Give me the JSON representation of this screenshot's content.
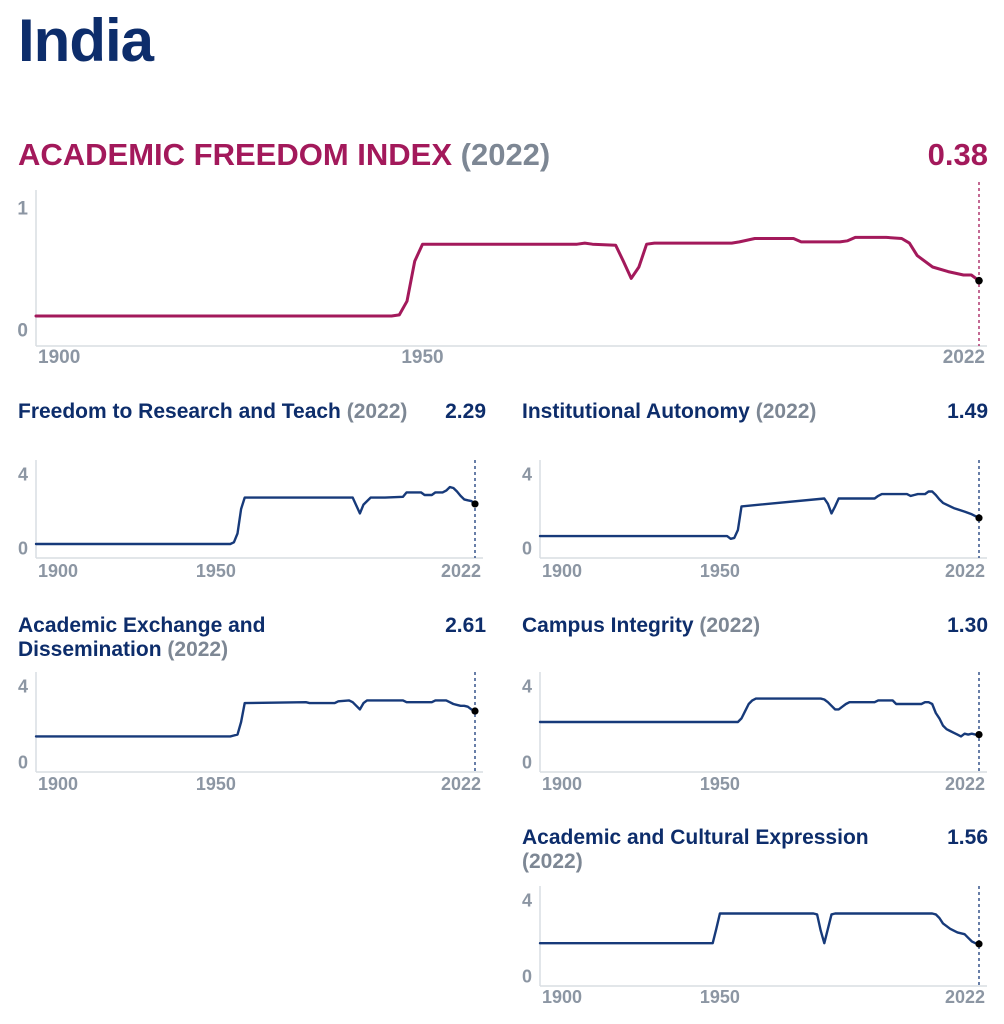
{
  "country": "India",
  "colors": {
    "main": "#a3195b",
    "sub": "#173a7a",
    "axis": "#d9dde2",
    "tick": "#8c96a3",
    "marker": "#000000"
  },
  "chart_data": [
    {
      "type": "line",
      "title": "ACADEMIC FREEDOM INDEX",
      "year_label": "(2022)",
      "value_label": "0.38",
      "xlim": [
        1900,
        2022
      ],
      "ylim": [
        0,
        1
      ],
      "yticks": [
        "1",
        "0"
      ],
      "xticks": [
        "1900",
        "1950",
        "2022"
      ],
      "series": [
        {
          "x": [
            1900,
            1946,
            1947,
            1948,
            1949,
            1950,
            1970,
            1971,
            1972,
            1975,
            1976,
            1977,
            1978,
            1979,
            1980,
            1981,
            1990,
            1991,
            1993,
            1998,
            1999,
            2001,
            2004,
            2005,
            2006,
            2010,
            2012,
            2013,
            2014,
            2016,
            2018,
            2020,
            2021,
            2022
          ],
          "y": [
            0.07,
            0.07,
            0.08,
            0.2,
            0.55,
            0.7,
            0.7,
            0.71,
            0.7,
            0.69,
            0.55,
            0.4,
            0.5,
            0.7,
            0.71,
            0.71,
            0.71,
            0.72,
            0.75,
            0.75,
            0.72,
            0.72,
            0.72,
            0.73,
            0.76,
            0.76,
            0.75,
            0.71,
            0.6,
            0.5,
            0.46,
            0.43,
            0.43,
            0.38
          ]
        }
      ]
    },
    {
      "type": "line",
      "title": "Freedom to Research and Teach",
      "year_label": "(2022)",
      "value_label": "2.29",
      "xlim": [
        1900,
        2022
      ],
      "ylim": [
        0,
        4
      ],
      "yticks": [
        "4",
        "0"
      ],
      "xticks": [
        "1900",
        "1950",
        "2022"
      ],
      "series": [
        {
          "x": [
            1900,
            1954,
            1955,
            1956,
            1957,
            1958,
            1988,
            1989,
            1990,
            1991,
            1993,
            1994,
            1995,
            1996,
            1997,
            2002,
            2003,
            2006,
            2007,
            2008,
            2010,
            2011,
            2013,
            2014,
            2015,
            2016,
            2017,
            2018,
            2019,
            2020,
            2021,
            2022
          ],
          "y": [
            0.0,
            0.0,
            0.1,
            0.6,
            2.0,
            2.65,
            2.65,
            2.2,
            1.75,
            2.25,
            2.65,
            2.65,
            2.65,
            2.65,
            2.65,
            2.7,
            2.95,
            2.95,
            2.95,
            2.8,
            2.8,
            2.95,
            2.95,
            3.05,
            3.25,
            3.2,
            3.0,
            2.75,
            2.55,
            2.5,
            2.45,
            2.29
          ]
        }
      ]
    },
    {
      "type": "line",
      "title": "Institutional Autonomy",
      "year_label": "(2022)",
      "value_label": "1.49",
      "xlim": [
        1900,
        2022
      ],
      "ylim": [
        0,
        4
      ],
      "yticks": [
        "4",
        "0"
      ],
      "xticks": [
        "1900",
        "1950",
        "2022"
      ],
      "series": [
        {
          "x": [
            1900,
            1947,
            1950,
            1952,
            1953,
            1954,
            1955,
            1956,
            1979,
            1980,
            1981,
            1982,
            1983,
            1984,
            1993,
            1994,
            1995,
            2002,
            2003,
            2004,
            2005,
            2007,
            2008,
            2009,
            2010,
            2011,
            2012,
            2015,
            2018,
            2020,
            2022
          ],
          "y": [
            0.45,
            0.45,
            0.45,
            0.45,
            0.3,
            0.35,
            0.8,
            2.15,
            2.6,
            2.3,
            1.75,
            2.15,
            2.6,
            2.6,
            2.6,
            2.75,
            2.85,
            2.85,
            2.75,
            2.8,
            2.85,
            2.85,
            3.0,
            3.0,
            2.8,
            2.55,
            2.35,
            2.05,
            1.85,
            1.7,
            1.49
          ]
        }
      ]
    },
    {
      "type": "line",
      "title": "Academic Exchange and Dissemination",
      "year_label": "(2022)",
      "value_label": "2.61",
      "xlim": [
        1900,
        2022
      ],
      "ylim": [
        0,
        4
      ],
      "yticks": [
        "4",
        "0"
      ],
      "xticks": [
        "1900",
        "1950",
        "2022"
      ],
      "series": [
        {
          "x": [
            1900,
            1953,
            1954,
            1955,
            1956,
            1957,
            1958,
            1975,
            1976,
            1983,
            1984,
            1987,
            1988,
            1989,
            1990,
            1991,
            1992,
            1993,
            2002,
            2003,
            2010,
            2011,
            2012,
            2014,
            2015,
            2016,
            2017,
            2018,
            2019,
            2020,
            2021,
            2022
          ],
          "y": [
            1.2,
            1.2,
            1.2,
            1.25,
            1.3,
            2.0,
            3.05,
            3.1,
            3.05,
            3.05,
            3.15,
            3.2,
            3.1,
            2.9,
            2.7,
            3.05,
            3.2,
            3.2,
            3.2,
            3.1,
            3.1,
            3.2,
            3.2,
            3.2,
            3.1,
            3.0,
            2.95,
            2.9,
            2.9,
            2.85,
            2.7,
            2.61
          ]
        }
      ]
    },
    {
      "type": "line",
      "title": "Campus Integrity",
      "year_label": "(2022)",
      "value_label": "1.30",
      "xlim": [
        1900,
        2022
      ],
      "ylim": [
        0,
        4
      ],
      "yticks": [
        "4",
        "0"
      ],
      "xticks": [
        "1900",
        "1950",
        "2022"
      ],
      "series": [
        {
          "x": [
            1900,
            1954,
            1955,
            1956,
            1957,
            1958,
            1959,
            1960,
            1978,
            1979,
            1980,
            1981,
            1982,
            1983,
            1984,
            1985,
            1986,
            1988,
            1993,
            1994,
            1995,
            1996,
            1998,
            1999,
            2000,
            2005,
            2006,
            2007,
            2008,
            2009,
            2010,
            2011,
            2012,
            2013,
            2014,
            2015,
            2016,
            2017,
            2018,
            2019,
            2020,
            2021,
            2022
          ],
          "y": [
            2.0,
            2.0,
            2.0,
            2.2,
            2.6,
            3.0,
            3.2,
            3.3,
            3.3,
            3.25,
            3.1,
            2.9,
            2.7,
            2.7,
            2.85,
            3.0,
            3.1,
            3.1,
            3.1,
            3.2,
            3.2,
            3.2,
            3.2,
            3.0,
            3.0,
            3.0,
            3.0,
            3.1,
            3.1,
            3.0,
            2.5,
            2.2,
            1.8,
            1.6,
            1.5,
            1.4,
            1.3,
            1.2,
            1.35,
            1.3,
            1.35,
            1.3,
            1.3
          ]
        }
      ]
    },
    {
      "type": "line",
      "title": "Academic and Cultural Expression",
      "year_label": "(2022)",
      "value_label": "1.56",
      "xlim": [
        1900,
        2022
      ],
      "ylim": [
        0,
        4
      ],
      "yticks": [
        "4",
        "0"
      ],
      "xticks": [
        "1900",
        "1950",
        "2022"
      ],
      "series": [
        {
          "x": [
            1900,
            1947,
            1948,
            1949,
            1950,
            1976,
            1977,
            1978,
            1979,
            1980,
            1981,
            1982,
            2009,
            2010,
            2011,
            2012,
            2014,
            2016,
            2018,
            2019,
            2020,
            2021,
            2022
          ],
          "y": [
            1.6,
            1.6,
            1.6,
            2.4,
            3.25,
            3.25,
            3.2,
            2.3,
            1.6,
            2.4,
            3.2,
            3.25,
            3.25,
            3.2,
            3.0,
            2.7,
            2.4,
            2.2,
            2.1,
            1.9,
            1.7,
            1.6,
            1.56
          ]
        }
      ]
    }
  ]
}
